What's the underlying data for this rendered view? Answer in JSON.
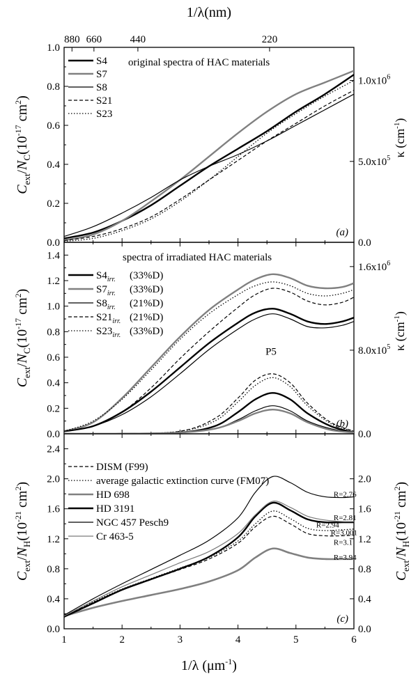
{
  "chart_data": [
    {
      "panel": "a",
      "type": "line",
      "panel_label": "(a)",
      "top_axis": {
        "label_prefix": "1/",
        "label_lambda": "λ",
        "label_suffix": "(nm)",
        "tick_labels": [
          "880",
          "660",
          "440",
          "220"
        ],
        "tick_positions_um": [
          1.136,
          1.515,
          2.273,
          4.545
        ]
      },
      "ylabel": {
        "c": "C",
        "ext": "ext",
        "slash": "/",
        "n": "N",
        "nsub": "C",
        "units": "(10",
        "exp": "-17",
        "units2": " cm",
        "exp2": "2",
        "close": ")"
      },
      "ylim": [
        0,
        1.0
      ],
      "y_ticks": [
        "0.0",
        "0.2",
        "0.4",
        "0.6",
        "0.8",
        "1.0"
      ],
      "right_ylabel": {
        "kappa": "κ",
        "units": " (cm",
        "exp": "-1",
        "close": ")"
      },
      "right_ticks": [
        {
          "label": "0.0",
          "at": 0.0
        },
        {
          "label": "5.0x10",
          "exp": "5",
          "at": 0.415
        },
        {
          "label": "1.0x10",
          "exp": "6",
          "at": 0.83
        }
      ],
      "annotation": "original spectra of HAC materials",
      "legend": [
        "S4",
        "S7",
        "S8",
        "S21",
        "S23"
      ],
      "series": [
        {
          "name": "S4",
          "style": "thick",
          "x": [
            1.0,
            1.5,
            2.0,
            2.5,
            3.0,
            3.5,
            4.0,
            4.5,
            5.0,
            5.5,
            6.0
          ],
          "y": [
            0.02,
            0.05,
            0.11,
            0.19,
            0.29,
            0.39,
            0.48,
            0.57,
            0.67,
            0.76,
            0.86
          ]
        },
        {
          "name": "S7",
          "style": "gray",
          "x": [
            1.0,
            1.5,
            2.0,
            2.5,
            3.0,
            3.5,
            4.0,
            4.5,
            5.0,
            5.5,
            6.0
          ],
          "y": [
            0.01,
            0.04,
            0.11,
            0.21,
            0.32,
            0.44,
            0.56,
            0.67,
            0.76,
            0.82,
            0.88
          ]
        },
        {
          "name": "S8",
          "style": "thin",
          "x": [
            1.0,
            1.5,
            2.0,
            2.5,
            3.0,
            3.5,
            4.0,
            4.5,
            5.0,
            5.5,
            6.0
          ],
          "y": [
            0.03,
            0.08,
            0.15,
            0.23,
            0.32,
            0.39,
            0.45,
            0.52,
            0.6,
            0.68,
            0.76
          ]
        },
        {
          "name": "S21",
          "style": "dashed",
          "x": [
            1.0,
            1.5,
            2.0,
            2.5,
            3.0,
            3.5,
            4.0,
            4.5,
            5.0,
            5.5,
            6.0
          ],
          "y": [
            0.01,
            0.03,
            0.07,
            0.13,
            0.22,
            0.32,
            0.42,
            0.52,
            0.61,
            0.7,
            0.78
          ]
        },
        {
          "name": "S23",
          "style": "dotted",
          "x": [
            1.0,
            1.5,
            2.0,
            2.5,
            3.0,
            3.5,
            4.0,
            4.5,
            5.0,
            5.5,
            6.0
          ],
          "y": [
            0.005,
            0.02,
            0.06,
            0.12,
            0.21,
            0.32,
            0.44,
            0.56,
            0.66,
            0.75,
            0.83
          ]
        }
      ]
    },
    {
      "panel": "b",
      "type": "line",
      "panel_label": "(b)",
      "ylabel": {
        "c": "C",
        "ext": "ext",
        "slash": "/",
        "n": "N",
        "nsub": "C",
        "units": "(10",
        "exp": "-17",
        "units2": " cm",
        "exp2": "2",
        "close": ")"
      },
      "ylim": [
        0,
        1.5
      ],
      "y_ticks": [
        "0.0",
        "0.2",
        "0.4",
        "0.6",
        "0.8",
        "1.0",
        "1.2",
        "1.4"
      ],
      "right_ylabel": {
        "kappa": "κ",
        "units": " (cm",
        "exp": "-1",
        "close": ")"
      },
      "right_ticks": [
        {
          "label": "0.0",
          "at": 0.0
        },
        {
          "label": "8.0x10",
          "exp": "5",
          "at": 0.655
        },
        {
          "label": "1.6x10",
          "exp": "6",
          "at": 1.31
        }
      ],
      "annotation": "spectra of irradiated HAC materials",
      "peak_label": "P5",
      "legend": [
        {
          "name": "S4",
          "sub": "irr.",
          "d": "(33%D)"
        },
        {
          "name": "S7",
          "sub": "irr.",
          "d": "(33%D)"
        },
        {
          "name": "S8",
          "sub": "irr.",
          "d": "(21%D)"
        },
        {
          "name": "S21",
          "sub": "irr.",
          "d": "(21%D)"
        },
        {
          "name": "S23",
          "sub": "irr.",
          "d": "(33%D)"
        }
      ],
      "series": [
        {
          "name": "S4 irr.",
          "style": "thick",
          "x": [
            1.0,
            1.5,
            2.0,
            2.5,
            3.0,
            3.5,
            4.0,
            4.3,
            4.6,
            4.9,
            5.2,
            5.5,
            5.8,
            6.0
          ],
          "y": [
            0.02,
            0.06,
            0.17,
            0.33,
            0.52,
            0.71,
            0.87,
            0.95,
            0.98,
            0.94,
            0.88,
            0.86,
            0.88,
            0.91
          ]
        },
        {
          "name": "S7 irr.",
          "style": "gray",
          "x": [
            1.0,
            1.5,
            2.0,
            2.5,
            3.0,
            3.5,
            4.0,
            4.3,
            4.6,
            4.9,
            5.2,
            5.5,
            5.8,
            6.0
          ],
          "y": [
            0.02,
            0.09,
            0.28,
            0.52,
            0.76,
            0.97,
            1.13,
            1.21,
            1.25,
            1.22,
            1.16,
            1.14,
            1.15,
            1.18
          ]
        },
        {
          "name": "S8 irr.",
          "style": "thin",
          "x": [
            1.0,
            1.5,
            2.0,
            2.5,
            3.0,
            3.5,
            4.0,
            4.3,
            4.6,
            4.9,
            5.2,
            5.5,
            5.8,
            6.0
          ],
          "y": [
            0.02,
            0.06,
            0.15,
            0.29,
            0.47,
            0.66,
            0.82,
            0.9,
            0.94,
            0.9,
            0.84,
            0.83,
            0.85,
            0.88
          ]
        },
        {
          "name": "S21 irr.",
          "style": "dashed",
          "x": [
            1.0,
            1.5,
            2.0,
            2.5,
            3.0,
            3.5,
            4.0,
            4.3,
            4.6,
            4.9,
            5.2,
            5.5,
            5.8,
            6.0
          ],
          "y": [
            0.02,
            0.06,
            0.17,
            0.36,
            0.59,
            0.8,
            0.99,
            1.09,
            1.14,
            1.11,
            1.04,
            1.01,
            1.03,
            1.07
          ]
        },
        {
          "name": "S23 irr.",
          "style": "dotted",
          "x": [
            1.0,
            1.5,
            2.0,
            2.5,
            3.0,
            3.5,
            4.0,
            4.3,
            4.6,
            4.9,
            5.2,
            5.5,
            5.8,
            6.0
          ],
          "y": [
            0.02,
            0.1,
            0.27,
            0.5,
            0.74,
            0.94,
            1.09,
            1.16,
            1.19,
            1.16,
            1.1,
            1.08,
            1.1,
            1.13
          ]
        },
        {
          "name": "P5 S21",
          "style": "dashed",
          "x": [
            1.0,
            2.0,
            3.0,
            3.6,
            4.0,
            4.3,
            4.6,
            4.9,
            5.2,
            5.6,
            6.0
          ],
          "y": [
            0.0,
            0.0,
            0.02,
            0.12,
            0.28,
            0.42,
            0.47,
            0.4,
            0.24,
            0.09,
            0.02
          ]
        },
        {
          "name": "P5 S23",
          "style": "dotted",
          "x": [
            1.0,
            2.0,
            3.0,
            3.6,
            4.0,
            4.3,
            4.6,
            4.9,
            5.2,
            5.6,
            6.0
          ],
          "y": [
            0.0,
            0.0,
            0.02,
            0.1,
            0.25,
            0.38,
            0.44,
            0.37,
            0.22,
            0.08,
            0.02
          ]
        },
        {
          "name": "P5 S4",
          "style": "thick",
          "x": [
            1.0,
            2.0,
            3.0,
            3.6,
            4.0,
            4.3,
            4.6,
            4.9,
            5.2,
            5.6,
            6.0
          ],
          "y": [
            0.0,
            0.0,
            0.01,
            0.06,
            0.17,
            0.27,
            0.32,
            0.27,
            0.16,
            0.06,
            0.01
          ]
        },
        {
          "name": "P5 S8",
          "style": "thin",
          "x": [
            1.0,
            2.0,
            3.0,
            3.6,
            4.0,
            4.3,
            4.6,
            4.9,
            5.2,
            5.6,
            6.0
          ],
          "y": [
            0.0,
            0.0,
            0.01,
            0.04,
            0.11,
            0.18,
            0.22,
            0.18,
            0.1,
            0.04,
            0.01
          ]
        },
        {
          "name": "P5 S7",
          "style": "gray",
          "x": [
            1.0,
            2.0,
            3.0,
            3.6,
            4.0,
            4.3,
            4.6,
            4.9,
            5.2,
            5.6,
            6.0
          ],
          "y": [
            0.0,
            0.0,
            0.01,
            0.04,
            0.1,
            0.16,
            0.19,
            0.16,
            0.09,
            0.03,
            0.01
          ]
        }
      ]
    },
    {
      "panel": "c",
      "type": "line",
      "panel_label": "(c)",
      "ylabel": {
        "c": "C",
        "ext": "ext",
        "slash": "/",
        "n": "N",
        "nsub": "H",
        "units": "(10",
        "exp": "-21",
        "units2": " cm",
        "exp2": "2",
        "close": ")"
      },
      "right_ylabel": {
        "c": "C",
        "ext": "ext",
        "slash": "/",
        "n": "N",
        "nsub": "H",
        "units": "(10",
        "exp": "-21",
        "units2": " cm",
        "exp2": "2",
        "close": ")"
      },
      "ylim": [
        0,
        2.6
      ],
      "y_ticks": [
        "0.0",
        "0.4",
        "0.8",
        "1.2",
        "1.6",
        "2.0",
        "2.4"
      ],
      "right_ticks": [
        {
          "label": "0.0",
          "at": 0.0
        },
        {
          "label": "0.4",
          "at": 0.4
        },
        {
          "label": "0.8",
          "at": 0.8
        },
        {
          "label": "1.2",
          "at": 1.2
        },
        {
          "label": "1.6",
          "at": 1.6
        },
        {
          "label": "2.0",
          "at": 2.0
        }
      ],
      "x_ticks": [
        "1",
        "2",
        "3",
        "4",
        "5",
        "6"
      ],
      "xlim": [
        1,
        6
      ],
      "xlabel": {
        "prefix": "1/",
        "lambda": "λ",
        "units": " (μm",
        "exp": "-1",
        "close": ")"
      },
      "legend": [
        "DISM (F99)",
        "average galactic extinction curve (FM07)",
        "HD 698",
        "HD 3191",
        "NGC 457 Pesch9",
        "Cr 463-5"
      ],
      "r_labels": [
        {
          "text": "R=2.76",
          "x": 5.65,
          "y": 1.76
        },
        {
          "text": "R=2.81",
          "x": 5.65,
          "y": 1.45
        },
        {
          "text": "R=2.94",
          "x": 5.35,
          "y": 1.35
        },
        {
          "text": "R=3.001",
          "x": 5.6,
          "y": 1.25
        },
        {
          "text": "R=3.1",
          "x": 5.65,
          "y": 1.12
        },
        {
          "text": "R=3.94",
          "x": 5.65,
          "y": 0.92
        }
      ],
      "series": [
        {
          "name": "DISM (F99)",
          "style": "dashed",
          "x": [
            1.0,
            1.5,
            2.0,
            2.5,
            3.0,
            3.5,
            4.0,
            4.3,
            4.6,
            4.9,
            5.2,
            5.5,
            5.8,
            6.0
          ],
          "y": [
            0.17,
            0.35,
            0.52,
            0.66,
            0.79,
            0.93,
            1.14,
            1.36,
            1.5,
            1.4,
            1.27,
            1.24,
            1.24,
            1.25
          ]
        },
        {
          "name": "average galactic extinction curve (FM07)",
          "style": "dotted",
          "x": [
            1.0,
            1.5,
            2.0,
            2.5,
            3.0,
            3.5,
            4.0,
            4.3,
            4.6,
            4.9,
            5.2,
            5.5,
            5.8,
            6.0
          ],
          "y": [
            0.17,
            0.36,
            0.53,
            0.67,
            0.81,
            0.95,
            1.17,
            1.4,
            1.57,
            1.47,
            1.34,
            1.31,
            1.32,
            1.33
          ]
        },
        {
          "name": "HD 698",
          "style": "gray-thick",
          "x": [
            1.0,
            1.5,
            2.0,
            2.5,
            3.0,
            3.5,
            4.0,
            4.3,
            4.6,
            4.9,
            5.2,
            5.5,
            5.8,
            6.0
          ],
          "y": [
            0.17,
            0.28,
            0.37,
            0.45,
            0.53,
            0.63,
            0.78,
            0.95,
            1.07,
            1.01,
            0.95,
            0.93,
            0.93,
            0.93
          ]
        },
        {
          "name": "HD 3191",
          "style": "thick",
          "x": [
            1.0,
            1.5,
            2.0,
            2.5,
            3.0,
            3.5,
            4.0,
            4.3,
            4.6,
            4.9,
            5.2,
            5.5,
            5.8,
            6.0
          ],
          "y": [
            0.16,
            0.34,
            0.52,
            0.66,
            0.8,
            0.96,
            1.22,
            1.5,
            1.68,
            1.58,
            1.46,
            1.42,
            1.42,
            1.42
          ]
        },
        {
          "name": "NGC 457 Pesch9",
          "style": "thin",
          "x": [
            1.0,
            1.5,
            2.0,
            2.5,
            3.0,
            3.5,
            4.0,
            4.3,
            4.6,
            4.9,
            5.2,
            5.5,
            5.8,
            6.0
          ],
          "y": [
            0.18,
            0.4,
            0.6,
            0.79,
            0.98,
            1.18,
            1.48,
            1.82,
            2.03,
            1.95,
            1.82,
            1.76,
            1.75,
            1.76
          ]
        },
        {
          "name": "Cr 463-5",
          "style": "gray-thin",
          "x": [
            1.0,
            1.5,
            2.0,
            2.5,
            3.0,
            3.5,
            4.0,
            4.3,
            4.6,
            4.9,
            5.2,
            5.5,
            5.8,
            6.0
          ],
          "y": [
            0.17,
            0.37,
            0.56,
            0.72,
            0.88,
            1.03,
            1.27,
            1.52,
            1.7,
            1.62,
            1.5,
            1.45,
            1.43,
            1.43
          ]
        }
      ]
    }
  ]
}
